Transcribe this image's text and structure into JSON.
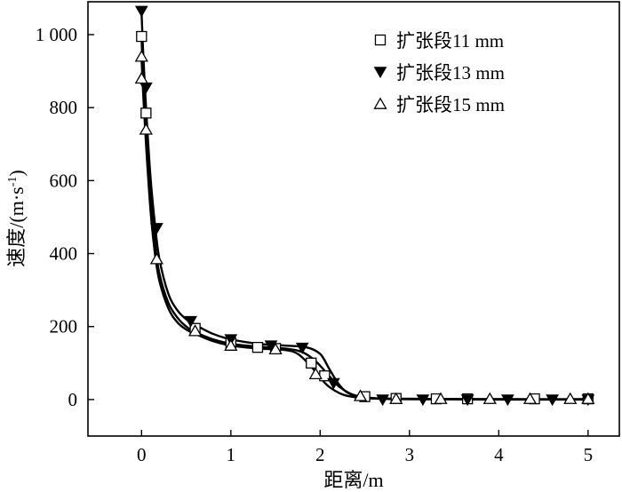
{
  "chart_data": {
    "type": "scatter",
    "title": "",
    "xlabel": "距离/m",
    "ylabel": "速度/(m·s⁻¹)",
    "ylabel_parts": {
      "main": "速度/(m·s",
      "sup": "-1",
      "close": ")"
    },
    "xlim": [
      -0.6,
      5.35
    ],
    "ylim": [
      -100,
      1090
    ],
    "xticks": [
      0,
      1,
      2,
      3,
      4,
      5
    ],
    "yticks": [
      0,
      200,
      400,
      600,
      800,
      1000
    ],
    "ytick_labels": [
      "0",
      "200",
      "400",
      "600",
      "800",
      "1 000"
    ],
    "grid": false,
    "legend_position": "top-right",
    "series": [
      {
        "name": "扩张段11 mm",
        "marker": "square-open",
        "points": [
          [
            0,
            995
          ],
          [
            0.05,
            785
          ],
          [
            0.6,
            195
          ],
          [
            1.0,
            155
          ],
          [
            1.3,
            143
          ],
          [
            1.5,
            140
          ],
          [
            1.9,
            100
          ],
          [
            2.05,
            65
          ],
          [
            2.5,
            8
          ],
          [
            2.85,
            3
          ],
          [
            3.3,
            2
          ],
          [
            3.65,
            2
          ],
          [
            4.4,
            2
          ],
          [
            5.0,
            2
          ]
        ],
        "curve": [
          [
            0,
            990
          ],
          [
            0.02,
            870
          ],
          [
            0.05,
            740
          ],
          [
            0.1,
            560
          ],
          [
            0.15,
            430
          ],
          [
            0.2,
            345
          ],
          [
            0.3,
            265
          ],
          [
            0.4,
            225
          ],
          [
            0.5,
            200
          ],
          [
            0.6,
            185
          ],
          [
            0.8,
            165
          ],
          [
            1.0,
            153
          ],
          [
            1.3,
            145
          ],
          [
            1.6,
            140
          ],
          [
            1.8,
            130
          ],
          [
            1.95,
            105
          ],
          [
            2.1,
            65
          ],
          [
            2.2,
            38
          ],
          [
            2.35,
            15
          ],
          [
            2.5,
            6
          ],
          [
            2.7,
            3
          ],
          [
            3.0,
            2
          ],
          [
            4.0,
            1
          ],
          [
            5.0,
            1
          ]
        ]
      },
      {
        "name": "扩张段13 mm",
        "marker": "triangle-down-filled",
        "points": [
          [
            0,
            1065
          ],
          [
            0.05,
            855
          ],
          [
            0.17,
            470
          ],
          [
            0.55,
            215
          ],
          [
            1.0,
            165
          ],
          [
            1.45,
            148
          ],
          [
            1.8,
            142
          ],
          [
            2.15,
            45
          ],
          [
            2.7,
            0
          ],
          [
            3.15,
            0
          ],
          [
            3.65,
            0
          ],
          [
            4.1,
            0
          ],
          [
            4.6,
            0
          ],
          [
            5.0,
            0
          ]
        ],
        "curve": [
          [
            0,
            1060
          ],
          [
            0.02,
            940
          ],
          [
            0.05,
            800
          ],
          [
            0.1,
            610
          ],
          [
            0.15,
            480
          ],
          [
            0.2,
            385
          ],
          [
            0.3,
            290
          ],
          [
            0.4,
            245
          ],
          [
            0.5,
            220
          ],
          [
            0.6,
            205
          ],
          [
            0.8,
            180
          ],
          [
            1.0,
            165
          ],
          [
            1.3,
            153
          ],
          [
            1.6,
            148
          ],
          [
            1.85,
            143
          ],
          [
            2.0,
            125
          ],
          [
            2.1,
            85
          ],
          [
            2.2,
            45
          ],
          [
            2.3,
            20
          ],
          [
            2.45,
            6
          ],
          [
            2.7,
            2
          ],
          [
            3.0,
            1
          ],
          [
            4.0,
            0
          ],
          [
            5.0,
            0
          ]
        ]
      },
      {
        "name": "扩张段15 mm",
        "marker": "triangle-up-open",
        "points": [
          [
            0,
            940
          ],
          [
            0,
            880
          ],
          [
            0.05,
            740
          ],
          [
            0.17,
            385
          ],
          [
            0.6,
            188
          ],
          [
            1.0,
            148
          ],
          [
            1.5,
            138
          ],
          [
            1.95,
            70
          ],
          [
            2.45,
            10
          ],
          [
            2.85,
            2
          ],
          [
            3.35,
            2
          ],
          [
            3.9,
            2
          ],
          [
            4.35,
            2
          ],
          [
            4.8,
            2
          ],
          [
            5.0,
            2
          ]
        ],
        "curve": [
          [
            0,
            935
          ],
          [
            0.02,
            830
          ],
          [
            0.05,
            700
          ],
          [
            0.1,
            520
          ],
          [
            0.15,
            400
          ],
          [
            0.2,
            325
          ],
          [
            0.3,
            250
          ],
          [
            0.4,
            212
          ],
          [
            0.5,
            192
          ],
          [
            0.6,
            180
          ],
          [
            0.8,
            160
          ],
          [
            1.0,
            148
          ],
          [
            1.3,
            140
          ],
          [
            1.6,
            136
          ],
          [
            1.75,
            125
          ],
          [
            1.9,
            90
          ],
          [
            2.0,
            60
          ],
          [
            2.1,
            35
          ],
          [
            2.25,
            14
          ],
          [
            2.4,
            6
          ],
          [
            2.6,
            3
          ],
          [
            3.0,
            2
          ],
          [
            4.0,
            1
          ],
          [
            5.0,
            1
          ]
        ]
      }
    ]
  }
}
